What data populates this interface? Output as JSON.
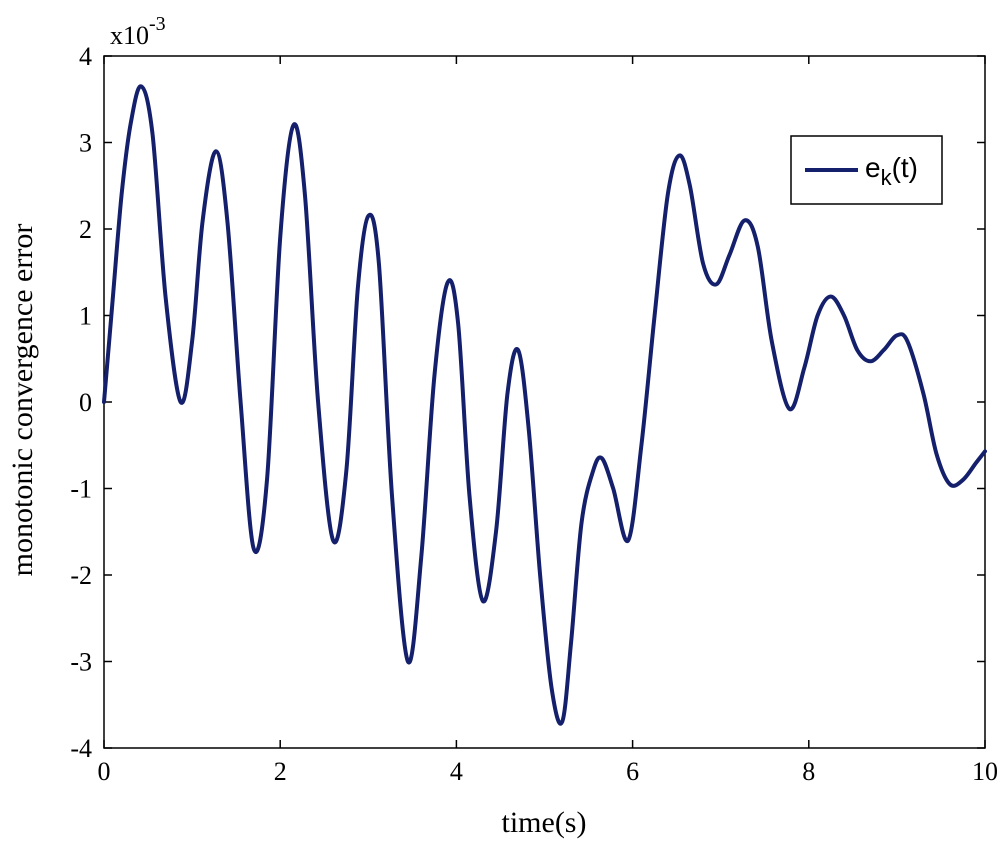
{
  "chart_data": {
    "type": "line",
    "title": "",
    "xlabel": "time(s)",
    "ylabel": "monotonic convergence error",
    "xlim": [
      0,
      10
    ],
    "ylim": [
      -0.004,
      0.004
    ],
    "x_ticks": [
      0,
      2,
      4,
      6,
      8,
      10
    ],
    "x_tick_labels": [
      "0",
      "2",
      "4",
      "6",
      "8",
      "10"
    ],
    "y_ticks": [
      4,
      3,
      2,
      1,
      0,
      -1,
      -2,
      -3,
      -4
    ],
    "y_tick_labels": [
      "4",
      "3",
      "2",
      "1",
      "0",
      "-1",
      "-2",
      "-3",
      "-4"
    ],
    "y_exponent": {
      "base": "x10",
      "power": "-3"
    },
    "grid": false,
    "legend": {
      "placement": "top-right",
      "entries": [
        {
          "main": "e",
          "sub": "k",
          "suffix": "(t)"
        }
      ]
    },
    "series": [
      {
        "color": "#14206b",
        "points": [
          [
            0.0,
            0.0
          ],
          [
            0.1,
            0.0012
          ],
          [
            0.2,
            0.0024
          ],
          [
            0.3,
            0.0032
          ],
          [
            0.42,
            0.00365
          ],
          [
            0.55,
            0.0031
          ],
          [
            0.7,
            0.0012
          ],
          [
            0.87,
            0.0
          ],
          [
            1.0,
            0.0007
          ],
          [
            1.12,
            0.0021
          ],
          [
            1.27,
            0.0029
          ],
          [
            1.4,
            0.0021
          ],
          [
            1.55,
            0.0
          ],
          [
            1.7,
            -0.0017
          ],
          [
            1.85,
            -0.0009
          ],
          [
            2.0,
            0.0019
          ],
          [
            2.15,
            0.0032
          ],
          [
            2.28,
            0.0024
          ],
          [
            2.43,
            0.0
          ],
          [
            2.6,
            -0.0016
          ],
          [
            2.75,
            -0.0008
          ],
          [
            2.88,
            0.0013
          ],
          [
            3.0,
            0.00215
          ],
          [
            3.12,
            0.0016
          ],
          [
            3.27,
            -0.0011
          ],
          [
            3.45,
            -0.003
          ],
          [
            3.6,
            -0.0018
          ],
          [
            3.75,
            0.0003
          ],
          [
            3.9,
            0.00138
          ],
          [
            4.02,
            0.0009
          ],
          [
            4.15,
            -0.0011
          ],
          [
            4.3,
            -0.0023
          ],
          [
            4.45,
            -0.0015
          ],
          [
            4.58,
            0.0001
          ],
          [
            4.7,
            0.0006
          ],
          [
            4.82,
            -0.0003
          ],
          [
            4.95,
            -0.002
          ],
          [
            5.08,
            -0.0033
          ],
          [
            5.2,
            -0.0037
          ],
          [
            5.3,
            -0.0028
          ],
          [
            5.42,
            -0.0014
          ],
          [
            5.55,
            -0.0008
          ],
          [
            5.65,
            -0.00065
          ],
          [
            5.78,
            -0.001
          ],
          [
            5.95,
            -0.0016
          ],
          [
            6.1,
            -0.0005
          ],
          [
            6.25,
            0.001
          ],
          [
            6.4,
            0.0024
          ],
          [
            6.53,
            0.00285
          ],
          [
            6.65,
            0.0025
          ],
          [
            6.8,
            0.0016
          ],
          [
            6.95,
            0.00136
          ],
          [
            7.1,
            0.0017
          ],
          [
            7.27,
            0.0021
          ],
          [
            7.42,
            0.0018
          ],
          [
            7.58,
            0.0007
          ],
          [
            7.78,
            -8e-05
          ],
          [
            7.95,
            0.0004
          ],
          [
            8.1,
            0.001
          ],
          [
            8.25,
            0.00122
          ],
          [
            8.4,
            0.001
          ],
          [
            8.55,
            0.0006
          ],
          [
            8.7,
            0.00047
          ],
          [
            8.85,
            0.0006
          ],
          [
            9.0,
            0.00077
          ],
          [
            9.12,
            0.0007
          ],
          [
            9.3,
            0.0001
          ],
          [
            9.45,
            -0.0006
          ],
          [
            9.6,
            -0.00095
          ],
          [
            9.75,
            -0.0009
          ],
          [
            9.9,
            -0.0007
          ],
          [
            10.0,
            -0.00057
          ]
        ]
      }
    ]
  }
}
